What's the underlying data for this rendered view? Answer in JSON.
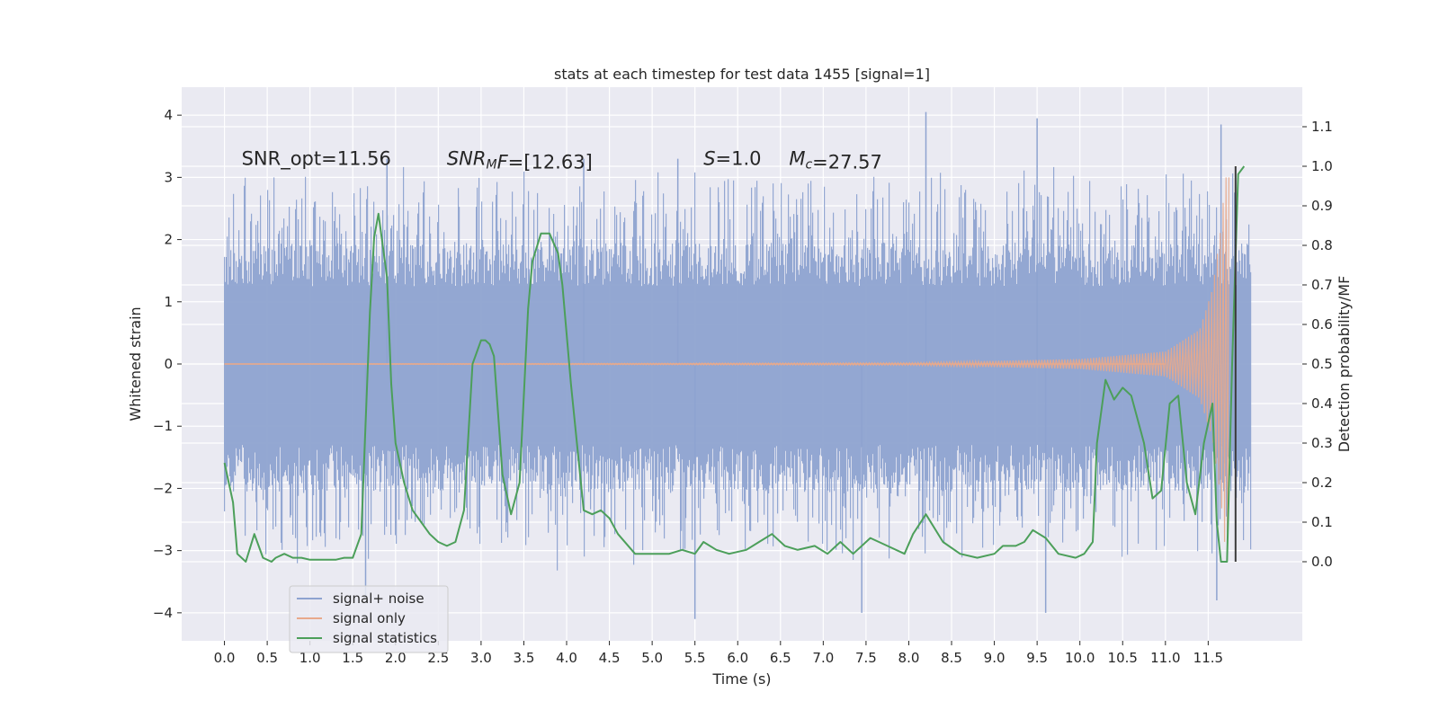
{
  "chart_data": {
    "type": "line",
    "title": "stats at each timestep for test data 1455 [signal=1]",
    "xlabel": "Time (s)",
    "ylabel": "Whitened strain",
    "y2label": "Detection probability/MF",
    "xlim": [
      -0.5,
      12.6
    ],
    "ylim": [
      -4.45,
      4.45
    ],
    "y2lim": [
      -0.2,
      1.2
    ],
    "x_ticks": [
      0.0,
      0.5,
      1.0,
      1.5,
      2.0,
      2.5,
      3.0,
      3.5,
      4.0,
      4.5,
      5.0,
      5.5,
      6.0,
      6.5,
      7.0,
      7.5,
      8.0,
      8.5,
      9.0,
      9.5,
      10.0,
      10.5,
      11.0,
      11.5
    ],
    "x_tick_labels": [
      "0.0",
      "0.5",
      "1.0",
      "1.5",
      "2.0",
      "2.5",
      "3.0",
      "3.5",
      "4.0",
      "4.5",
      "5.0",
      "5.5",
      "6.0",
      "6.5",
      "7.0",
      "7.5",
      "8.0",
      "8.5",
      "9.0",
      "9.5",
      "10.0",
      "10.5",
      "11.0",
      "11.5"
    ],
    "y_ticks": [
      4,
      3,
      2,
      1,
      0,
      -1,
      -2,
      -3,
      -4
    ],
    "y_tick_labels": [
      "4",
      "3",
      "2",
      "1",
      "0",
      "−1",
      "−2",
      "−3",
      "−4"
    ],
    "y2_ticks": [
      1.1,
      1.0,
      0.9,
      0.8,
      0.7,
      0.6,
      0.5,
      0.4,
      0.3,
      0.2,
      0.1,
      0.0
    ],
    "y2_tick_labels": [
      "1.1",
      "1.0",
      "0.9",
      "0.8",
      "0.7",
      "0.6",
      "0.5",
      "0.4",
      "0.3",
      "0.2",
      "0.1",
      "0.0"
    ],
    "grid": true,
    "legend_position": "lower-left",
    "noise_band": {
      "name": "signal+ noise",
      "x_range": [
        0.0,
        12.0
      ],
      "typical_upper": 1.9,
      "typical_lower": -2.0,
      "peak_extremes": [
        [
          1.9,
          3.3
        ],
        [
          4.2,
          3.3
        ],
        [
          5.3,
          3.3
        ],
        [
          8.2,
          4.05
        ],
        [
          9.5,
          3.95
        ],
        [
          11.65,
          3.85
        ],
        [
          5.5,
          -4.1
        ],
        [
          7.45,
          -4.0
        ],
        [
          9.6,
          -4.0
        ],
        [
          11.6,
          -3.8
        ],
        [
          1.65,
          -3.75
        ]
      ]
    },
    "signal_only": {
      "name": "signal only",
      "envelope": [
        {
          "x": 0.0,
          "amp": 0.0
        },
        {
          "x": 8.0,
          "amp": 0.02
        },
        {
          "x": 10.0,
          "amp": 0.08
        },
        {
          "x": 11.0,
          "amp": 0.2
        },
        {
          "x": 11.4,
          "amp": 0.55
        },
        {
          "x": 11.55,
          "amp": 1.2
        },
        {
          "x": 11.65,
          "amp": 2.2
        },
        {
          "x": 11.7,
          "amp": 3.0
        },
        {
          "x": 11.75,
          "amp": 3.0
        }
      ]
    },
    "detection_line": {
      "x": 11.82,
      "y2_range": [
        0.0,
        1.0
      ]
    },
    "series": [
      {
        "name": "signal statistics",
        "axis": "right",
        "x": [
          0.0,
          0.1,
          0.15,
          0.25,
          0.35,
          0.4,
          0.45,
          0.55,
          0.6,
          0.7,
          0.8,
          0.9,
          1.0,
          1.1,
          1.2,
          1.3,
          1.4,
          1.5,
          1.6,
          1.7,
          1.75,
          1.8,
          1.9,
          1.95,
          2.0,
          2.1,
          2.2,
          2.3,
          2.4,
          2.5,
          2.6,
          2.7,
          2.8,
          2.9,
          3.0,
          3.05,
          3.1,
          3.15,
          3.25,
          3.35,
          3.45,
          3.55,
          3.6,
          3.7,
          3.8,
          3.9,
          3.95,
          4.05,
          4.2,
          4.3,
          4.4,
          4.5,
          4.6,
          4.8,
          5.0,
          5.2,
          5.35,
          5.5,
          5.6,
          5.75,
          5.9,
          6.1,
          6.25,
          6.4,
          6.55,
          6.7,
          6.9,
          7.05,
          7.2,
          7.35,
          7.55,
          7.75,
          7.95,
          8.05,
          8.2,
          8.4,
          8.6,
          8.8,
          9.0,
          9.1,
          9.25,
          9.35,
          9.45,
          9.6,
          9.75,
          9.95,
          10.05,
          10.15,
          10.2,
          10.3,
          10.4,
          10.5,
          10.6,
          10.75,
          10.85,
          10.95,
          11.05,
          11.15,
          11.25,
          11.35,
          11.45,
          11.55,
          11.6,
          11.65,
          11.72,
          11.78,
          11.85,
          11.92
        ],
        "values": [
          0.25,
          0.15,
          0.02,
          0.0,
          0.07,
          0.04,
          0.01,
          0.0,
          0.01,
          0.02,
          0.01,
          0.01,
          0.005,
          0.005,
          0.005,
          0.005,
          0.01,
          0.01,
          0.07,
          0.63,
          0.82,
          0.88,
          0.72,
          0.45,
          0.3,
          0.2,
          0.13,
          0.1,
          0.07,
          0.05,
          0.04,
          0.05,
          0.13,
          0.5,
          0.56,
          0.56,
          0.55,
          0.52,
          0.22,
          0.12,
          0.2,
          0.64,
          0.76,
          0.83,
          0.83,
          0.78,
          0.7,
          0.45,
          0.13,
          0.12,
          0.13,
          0.11,
          0.07,
          0.02,
          0.02,
          0.02,
          0.03,
          0.02,
          0.05,
          0.03,
          0.02,
          0.03,
          0.05,
          0.07,
          0.04,
          0.03,
          0.04,
          0.02,
          0.05,
          0.02,
          0.06,
          0.04,
          0.02,
          0.07,
          0.12,
          0.05,
          0.02,
          0.01,
          0.02,
          0.04,
          0.04,
          0.05,
          0.08,
          0.06,
          0.02,
          0.01,
          0.02,
          0.05,
          0.3,
          0.46,
          0.41,
          0.44,
          0.42,
          0.3,
          0.16,
          0.18,
          0.4,
          0.42,
          0.2,
          0.12,
          0.3,
          0.4,
          0.1,
          0.0,
          0.0,
          0.5,
          0.98,
          1.0
        ]
      }
    ],
    "annotations": [
      {
        "x": 0.2,
        "y": 3.2,
        "parts": [
          {
            "t": "SNR_opt=11.56",
            "italic": false
          }
        ]
      },
      {
        "x": 2.6,
        "y": 3.2,
        "parts": [
          {
            "t": "SNR",
            "italic": true
          },
          {
            "t": "M",
            "italic": true,
            "sub": true
          },
          {
            "t": "F",
            "italic": true
          },
          {
            "t": "=[12.63]",
            "italic": false
          }
        ]
      },
      {
        "x": 5.6,
        "y": 3.2,
        "parts": [
          {
            "t": "S",
            "italic": true
          },
          {
            "t": "=1.0",
            "italic": false
          }
        ]
      },
      {
        "x": 6.6,
        "y": 3.2,
        "parts": [
          {
            "t": "M",
            "italic": true
          },
          {
            "t": "c",
            "italic": true,
            "sub": true
          },
          {
            "t": "=27.57",
            "italic": false
          }
        ]
      }
    ],
    "legend": [
      {
        "label": "signal+ noise",
        "color": "#8ea3d0"
      },
      {
        "label": "signal only",
        "color": "#e8a98b"
      },
      {
        "label": "signal statistics",
        "color": "#4c9f5a"
      }
    ]
  },
  "colors": {
    "figure_bg": "#ffffff",
    "axes_bg": "#eaeaf2",
    "grid": "#ffffff",
    "text": "#262626",
    "noise": "#8ea3d0",
    "signal": "#e8a98b",
    "stat": "#4c9f5a",
    "detection": "#3a3a3a"
  }
}
